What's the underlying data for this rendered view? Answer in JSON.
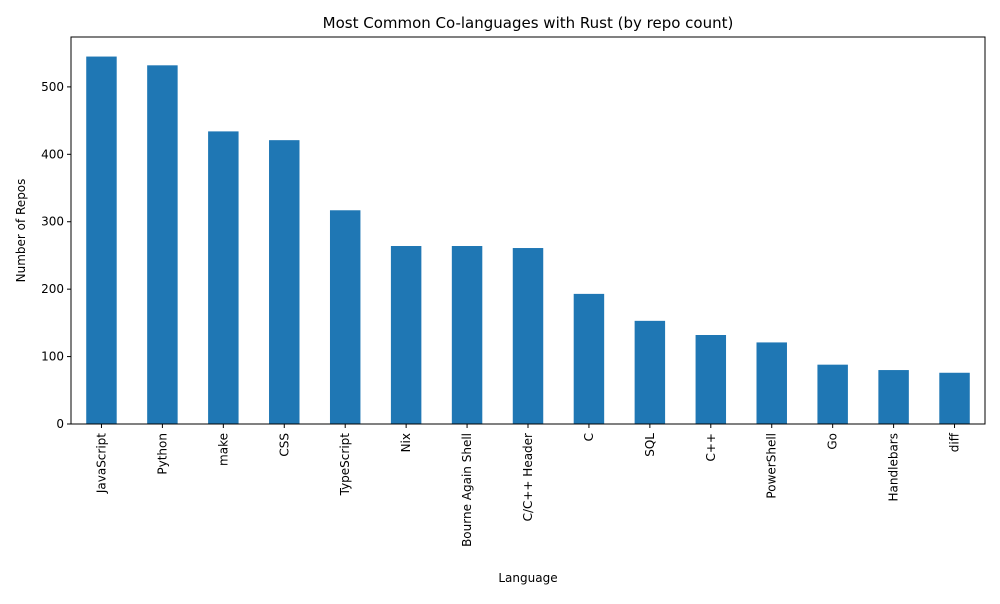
{
  "chart_data": {
    "type": "bar",
    "title": "Most Common Co-languages with Rust (by repo count)",
    "xlabel": "Language",
    "ylabel": "Number of Repos",
    "categories": [
      "JavaScript",
      "Python",
      "make",
      "CSS",
      "TypeScript",
      "Nix",
      "Bourne Again Shell",
      "C/C++ Header",
      "C",
      "SQL",
      "C++",
      "PowerShell",
      "Go",
      "Handlebars",
      "diff"
    ],
    "values": [
      545,
      532,
      434,
      421,
      317,
      264,
      264,
      261,
      193,
      153,
      132,
      121,
      88,
      80,
      76
    ],
    "ylim": [
      0,
      574
    ],
    "yticks": [
      0,
      100,
      200,
      300,
      400,
      500
    ],
    "grid": false,
    "legend": "none",
    "bar_color": "#1f77b4"
  }
}
